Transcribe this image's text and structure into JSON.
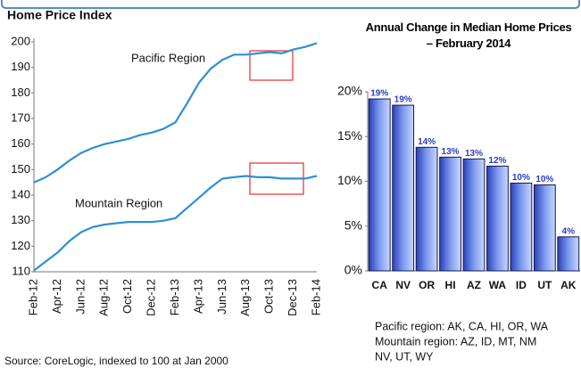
{
  "source": "Source: CoreLogic, indexed to 100 at Jan 2000",
  "chart_data": [
    {
      "type": "line",
      "title": "Home Price Index",
      "categories": [
        "Feb-12",
        null,
        "Apr-12",
        null,
        "Jun-12",
        null,
        "Aug-12",
        null,
        "Oct-12",
        null,
        "Dec-12",
        null,
        "Feb-13",
        null,
        "Apr-13",
        null,
        "Jun-13",
        null,
        "Aug-13",
        null,
        "Oct-13",
        null,
        "Dec-13",
        null,
        "Feb-14"
      ],
      "series": [
        {
          "name": "Pacific Region",
          "color": "#2e8fd6",
          "values": [
            145,
            147,
            150,
            153.5,
            156.5,
            158.5,
            160,
            161,
            162,
            163.5,
            164.5,
            166,
            168.5,
            176,
            184,
            189.5,
            193,
            195,
            195,
            195.5,
            196,
            195.5,
            197,
            198,
            199.5
          ]
        },
        {
          "name": "Mountain Region",
          "color": "#2e8fd6",
          "values": [
            110.5,
            114,
            117.5,
            122,
            125.5,
            127.5,
            128.5,
            129,
            129.5,
            129.5,
            129.5,
            130,
            131,
            135,
            139,
            143,
            146.5,
            147,
            147.5,
            147,
            147,
            146.5,
            146.5,
            146.5,
            147.5
          ]
        }
      ],
      "ylim": [
        110,
        200
      ],
      "yticks": [
        110,
        120,
        130,
        140,
        150,
        160,
        170,
        180,
        190,
        200
      ]
    },
    {
      "type": "bar",
      "title": "Annual Change in Median Home Prices – February 2014",
      "categories": [
        "CA",
        "NV",
        "OR",
        "HI",
        "AZ",
        "WA",
        "ID",
        "UT",
        "AK"
      ],
      "values": [
        19.2,
        18.5,
        13.8,
        12.7,
        12.5,
        11.7,
        9.8,
        9.6,
        3.8
      ],
      "value_labels": [
        "19%",
        "19%",
        "14%",
        "13%",
        "13%",
        "12%",
        "10%",
        "10%",
        "4%"
      ],
      "color": "#4a6fe0",
      "ylim": [
        0,
        20
      ],
      "yticks": [
        {
          "value": 0,
          "label": "0%"
        },
        {
          "value": 5,
          "label": "5%"
        },
        {
          "value": 10,
          "label": "10%"
        },
        {
          "value": 15,
          "label": "15%"
        },
        {
          "value": 20,
          "label": "20%"
        }
      ],
      "notes": [
        "Pacific region: AK, CA, HI, OR, WA",
        "Mountain region:  AZ, ID, MT, NM",
        "NV, UT, WY"
      ]
    }
  ]
}
